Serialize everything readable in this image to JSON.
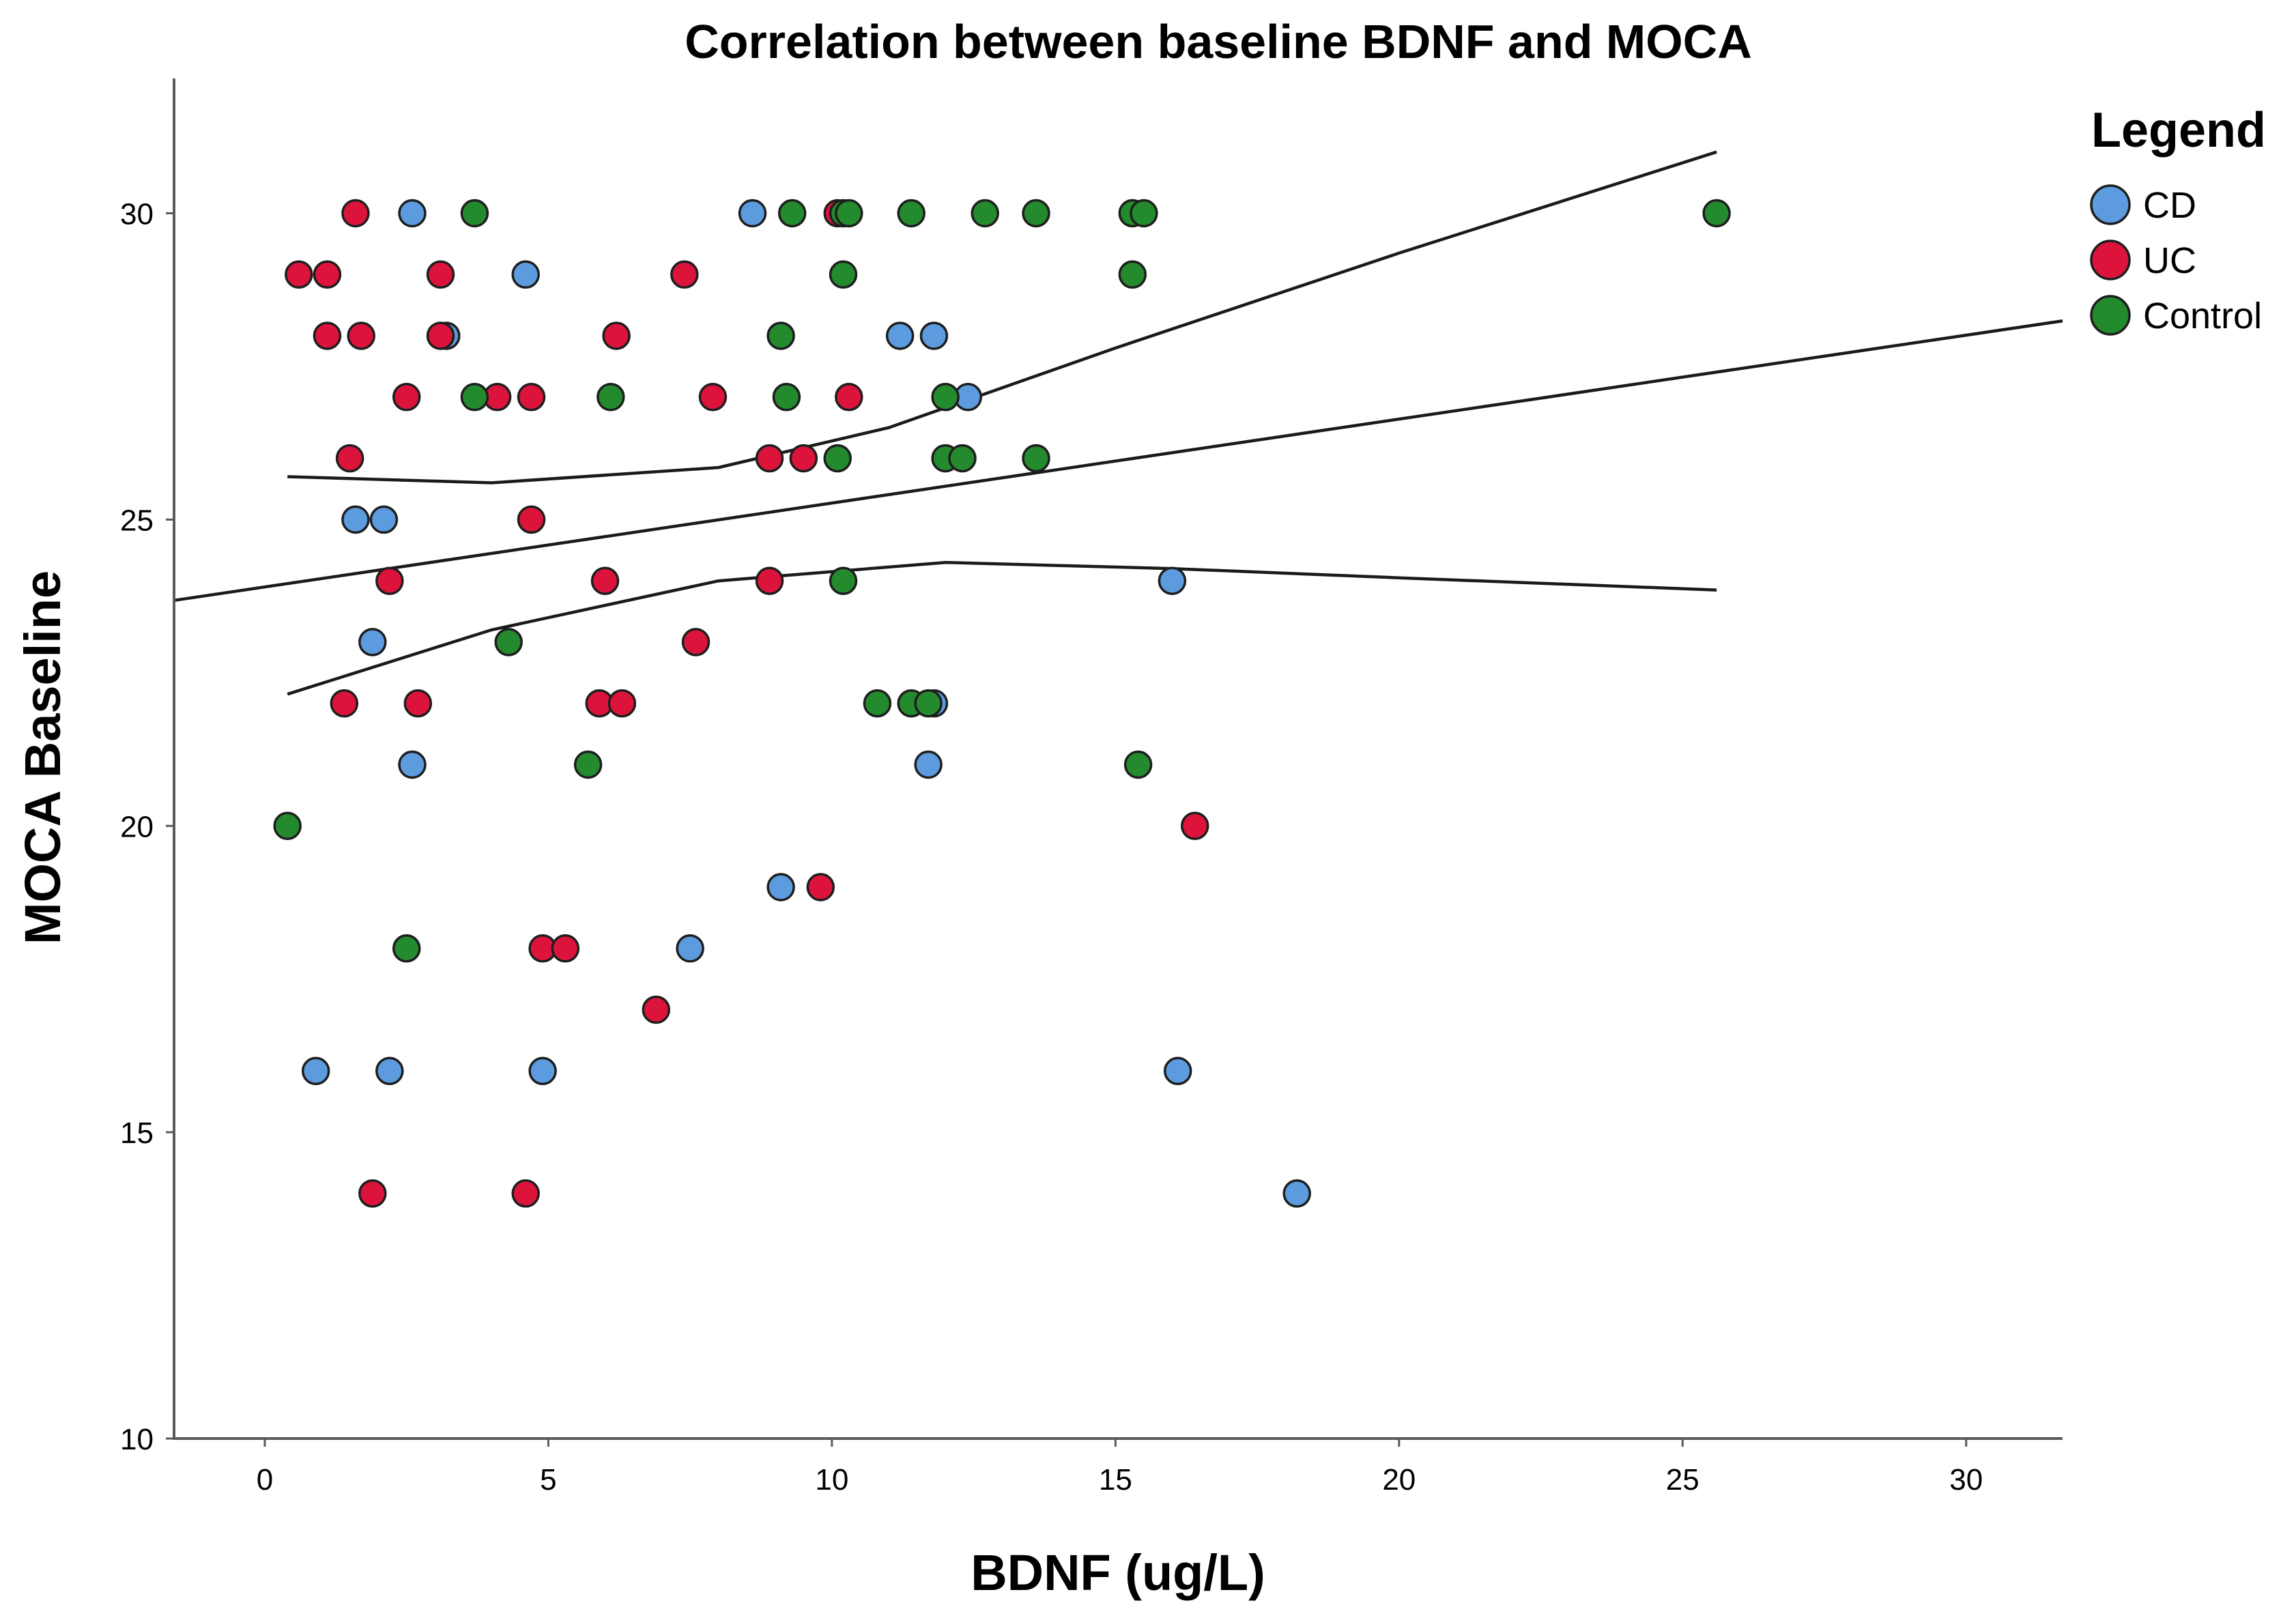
{
  "chart_data": {
    "type": "scatter",
    "title": "Correlation between baseline BDNF and MOCA",
    "xlabel": "BDNF (ug/L)",
    "ylabel": "MOCA Baseline",
    "xlim": [
      -1.6,
      31.7
    ],
    "ylim": [
      10,
      32.2
    ],
    "x_ticks": [
      "0",
      "5",
      "10",
      "15",
      "20",
      "25",
      "30"
    ],
    "y_ticks": [
      "10",
      "15",
      "20",
      "25",
      "30"
    ],
    "grid": false,
    "legend": {
      "title": "Legend",
      "position": "right",
      "entries": [
        "CD",
        "UC",
        "Control"
      ]
    },
    "colors": {
      "CD": "#5b9bde",
      "UC": "#dc143c",
      "Control": "#238a2d"
    },
    "series": [
      {
        "name": "CD",
        "points": [
          [
            2.6,
            30
          ],
          [
            8.6,
            30
          ],
          [
            4.6,
            29
          ],
          [
            3.2,
            28
          ],
          [
            11.2,
            28
          ],
          [
            11.8,
            28
          ],
          [
            12.4,
            27
          ],
          [
            1.6,
            25
          ],
          [
            2.1,
            25
          ],
          [
            1.9,
            23
          ],
          [
            16.0,
            24
          ],
          [
            11.8,
            22
          ],
          [
            2.6,
            21
          ],
          [
            11.7,
            21
          ],
          [
            9.1,
            19
          ],
          [
            7.5,
            18
          ],
          [
            0.9,
            16
          ],
          [
            2.2,
            16
          ],
          [
            4.9,
            16
          ],
          [
            16.1,
            16
          ],
          [
            18.2,
            14
          ]
        ]
      },
      {
        "name": "UC",
        "points": [
          [
            1.6,
            30
          ],
          [
            10.1,
            30
          ],
          [
            0.6,
            29
          ],
          [
            1.1,
            29
          ],
          [
            3.1,
            29
          ],
          [
            7.4,
            29
          ],
          [
            1.1,
            28
          ],
          [
            1.7,
            28
          ],
          [
            3.1,
            28
          ],
          [
            6.2,
            28
          ],
          [
            2.5,
            27
          ],
          [
            4.1,
            27
          ],
          [
            4.7,
            27
          ],
          [
            7.9,
            27
          ],
          [
            10.3,
            27
          ],
          [
            1.5,
            26
          ],
          [
            8.9,
            26
          ],
          [
            9.5,
            26
          ],
          [
            4.7,
            25
          ],
          [
            2.2,
            24
          ],
          [
            6.0,
            24
          ],
          [
            8.9,
            24
          ],
          [
            7.6,
            23
          ],
          [
            1.4,
            22
          ],
          [
            2.7,
            22
          ],
          [
            5.9,
            22
          ],
          [
            6.3,
            22
          ],
          [
            16.4,
            20
          ],
          [
            9.8,
            19
          ],
          [
            4.9,
            18
          ],
          [
            5.3,
            18
          ],
          [
            6.9,
            17
          ],
          [
            1.9,
            14
          ],
          [
            4.6,
            14
          ]
        ]
      },
      {
        "name": "Control",
        "points": [
          [
            3.7,
            30
          ],
          [
            9.3,
            30
          ],
          [
            10.2,
            30
          ],
          [
            10.3,
            30
          ],
          [
            11.4,
            30
          ],
          [
            12.7,
            30
          ],
          [
            13.6,
            30
          ],
          [
            15.3,
            30
          ],
          [
            15.5,
            30
          ],
          [
            25.6,
            30
          ],
          [
            10.2,
            29
          ],
          [
            15.3,
            29
          ],
          [
            9.1,
            28
          ],
          [
            3.7,
            27
          ],
          [
            6.1,
            27
          ],
          [
            9.2,
            27
          ],
          [
            12.0,
            27
          ],
          [
            10.1,
            26
          ],
          [
            12.0,
            26
          ],
          [
            12.3,
            26
          ],
          [
            13.6,
            26
          ],
          [
            10.2,
            24
          ],
          [
            4.3,
            23
          ],
          [
            10.8,
            22
          ],
          [
            11.4,
            22
          ],
          [
            11.7,
            22
          ],
          [
            5.7,
            21
          ],
          [
            15.4,
            21
          ],
          [
            0.4,
            20
          ],
          [
            2.5,
            18
          ]
        ]
      }
    ],
    "fit_line": {
      "intercept": 23.9,
      "slope": 0.137
    },
    "confidence_band": {
      "upper": [
        [
          0.4,
          25.7
        ],
        [
          4.0,
          25.6
        ],
        [
          8.0,
          25.85
        ],
        [
          11.0,
          26.5
        ],
        [
          15.0,
          27.8
        ],
        [
          20.0,
          29.35
        ],
        [
          25.6,
          31.0
        ]
      ],
      "lower": [
        [
          0.4,
          22.15
        ],
        [
          4.0,
          23.2
        ],
        [
          8.0,
          24.0
        ],
        [
          12.0,
          24.3
        ],
        [
          16.0,
          24.2
        ],
        [
          20.0,
          24.05
        ],
        [
          25.6,
          23.85
        ]
      ]
    }
  }
}
